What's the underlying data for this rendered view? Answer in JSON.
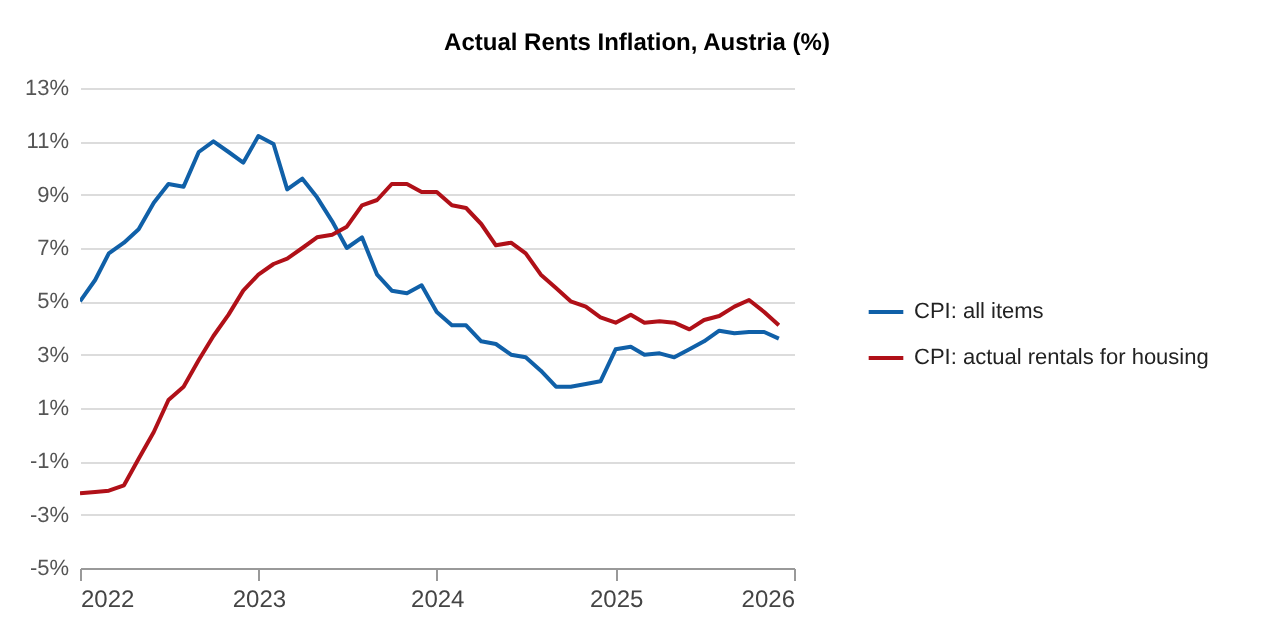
{
  "chart_data": {
    "type": "line",
    "title": "Actual Rents Inflation, Austria (%)",
    "x": [
      "2022-01",
      "2022-02",
      "2022-03",
      "2022-04",
      "2022-05",
      "2022-06",
      "2022-07",
      "2022-08",
      "2022-09",
      "2022-10",
      "2022-11",
      "2022-12",
      "2023-01",
      "2023-02",
      "2023-03",
      "2023-04",
      "2023-05",
      "2023-06",
      "2023-07",
      "2023-08",
      "2023-09",
      "2023-10",
      "2023-11",
      "2023-12",
      "2024-01",
      "2024-02",
      "2024-03",
      "2024-04",
      "2024-05",
      "2024-06",
      "2024-07",
      "2024-08",
      "2024-09",
      "2024-10",
      "2024-11",
      "2024-12",
      "2025-01",
      "2025-02",
      "2025-03",
      "2025-04",
      "2025-05",
      "2025-06",
      "2025-07",
      "2025-08",
      "2025-09",
      "2025-10",
      "2025-11",
      "2025-12"
    ],
    "series": [
      {
        "name": "CPI: all items",
        "color": "#1060a8",
        "values": [
          5.0,
          5.8,
          6.8,
          7.2,
          7.7,
          8.7,
          9.4,
          9.3,
          10.6,
          11.0,
          10.6,
          10.2,
          11.2,
          10.9,
          9.2,
          9.6,
          8.9,
          8.0,
          7.0,
          7.4,
          6.0,
          5.4,
          5.3,
          5.6,
          4.6,
          4.1,
          4.1,
          3.5,
          3.4,
          3.0,
          2.9,
          2.4,
          1.8,
          1.8,
          1.9,
          2.0,
          3.2,
          3.3,
          3.0,
          3.05,
          2.9,
          3.2,
          3.5,
          3.9,
          3.8,
          3.85,
          3.85,
          3.6
        ]
      },
      {
        "name": "CPI: actual rentals for housing",
        "color": "#b01018",
        "values": [
          -2.2,
          -2.15,
          -2.1,
          -1.9,
          -0.9,
          0.1,
          1.3,
          1.8,
          2.8,
          3.7,
          4.5,
          5.4,
          6.0,
          6.4,
          6.6,
          7.0,
          7.4,
          7.5,
          7.8,
          8.6,
          8.8,
          9.4,
          9.4,
          9.1,
          9.1,
          8.6,
          8.5,
          7.9,
          7.1,
          7.2,
          6.8,
          6.0,
          5.5,
          5.0,
          4.8,
          4.4,
          4.2,
          4.5,
          4.2,
          4.25,
          4.2,
          3.95,
          4.3,
          4.45,
          4.8,
          5.05,
          4.6,
          4.1
        ]
      }
    ],
    "xlim": [
      "2022",
      "2026"
    ],
    "xticks": [
      "2022",
      "2023",
      "2024",
      "2025",
      "2026"
    ],
    "ylim": [
      -5,
      13
    ],
    "yticks": [
      {
        "value": -5,
        "label": "-5%"
      },
      {
        "value": -3,
        "label": "-3%"
      },
      {
        "value": -1,
        "label": "-1%"
      },
      {
        "value": 1,
        "label": "1%"
      },
      {
        "value": 3,
        "label": "3%"
      },
      {
        "value": 5,
        "label": "5%"
      },
      {
        "value": 7,
        "label": "7%"
      },
      {
        "value": 9,
        "label": "9%"
      },
      {
        "value": 11,
        "label": "11%"
      },
      {
        "value": 13,
        "label": "13%"
      }
    ],
    "grid": "y",
    "legend": "right",
    "line_style": "solid"
  }
}
